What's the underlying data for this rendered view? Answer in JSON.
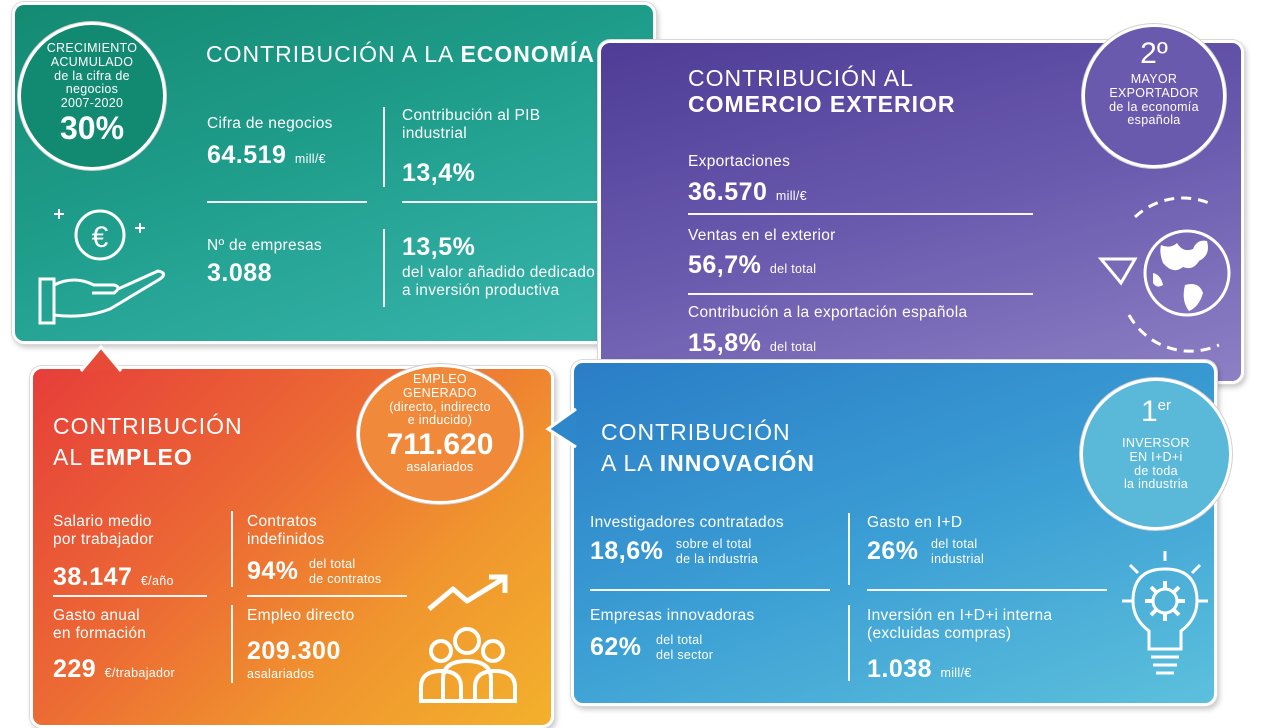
{
  "economia": {
    "title_prefix": "CONTRIBUCIÓN A LA ",
    "title_bold": "ECONOMÍA",
    "badge": {
      "line1": "CRECIMIENTO",
      "line2": "ACUMULADO",
      "line3": "de la cifra de",
      "line4": "negocios",
      "line5": "2007-2020",
      "value": "30%"
    },
    "cifra": {
      "label": "Cifra de negocios",
      "value": "64.519",
      "unit": "mill/€"
    },
    "pib": {
      "label1": "Contribución al PIB",
      "label2": "industrial",
      "value": "13,4%"
    },
    "empresas": {
      "label": "Nº de empresas",
      "value": "3.088"
    },
    "valor": {
      "value": "13,5%",
      "label1": "del valor añadido dedicado",
      "label2": "a inversión productiva"
    },
    "colors": {
      "from": "#1a8f7a",
      "to": "#3cb8b0"
    }
  },
  "comercio": {
    "title_line1": "CONTRIBUCIÓN AL",
    "title_line2": "COMERCIO EXTERIOR",
    "badge": {
      "rank": "2º",
      "line1": "MAYOR",
      "line2": "EXPORTADOR",
      "line3": "de la economía",
      "line4": "española"
    },
    "exportaciones": {
      "label": "Exportaciones",
      "value": "36.570",
      "unit": "mill/€"
    },
    "ventas": {
      "label": "Ventas en el exterior",
      "value": "56,7%",
      "unit": "del total"
    },
    "contrib": {
      "label": "Contribución a la exportación española",
      "value": "15,8%",
      "unit": "del total"
    },
    "colors": {
      "from": "#5a4aa0",
      "to": "#8a7cc0"
    }
  },
  "empleo": {
    "title_line1": "CONTRIBUCIÓN",
    "title_prefix": "AL ",
    "title_bold": "EMPLEO",
    "badge": {
      "line1": "EMPLEO",
      "line2": "GENERADO",
      "line3": "(directo, indirecto",
      "line4": "e inducido)",
      "value": "711.620",
      "unit": "asalariados"
    },
    "salario": {
      "label1": "Salario medio",
      "label2": "por trabajador",
      "value": "38.147",
      "unit": "€/año"
    },
    "contratos": {
      "label1": "Contratos",
      "label2": "indefinidos",
      "value": "94%",
      "unit1": "del total",
      "unit2": "de contratos"
    },
    "gasto": {
      "label1": "Gasto anual",
      "label2": "en formación",
      "value": "229",
      "unit": "€/trabajador"
    },
    "directo": {
      "label": "Empleo directo",
      "value": "209.300",
      "unit": "asalariados"
    },
    "colors": {
      "from": "#e84a3c",
      "to": "#f2a52a"
    }
  },
  "innovacion": {
    "title_line1": "CONTRIBUCIÓN",
    "title_prefix": "A LA ",
    "title_bold": "INNOVACIÓN",
    "badge": {
      "rank": "1",
      "rank_sup": "er",
      "line1": "INVERSOR",
      "line2": "EN I+D+i",
      "line3": "de toda",
      "line4": "la industria"
    },
    "investigadores": {
      "label": "Investigadores contratados",
      "value": "18,6%",
      "unit1": "sobre el total",
      "unit2": "de la industria"
    },
    "gasto": {
      "label": "Gasto en I+D",
      "value": "26%",
      "unit1": "del total",
      "unit2": "industrial"
    },
    "empresas": {
      "label": "Empresas innovadoras",
      "value": "62%",
      "unit1": "del total",
      "unit2": "del sector"
    },
    "inversion": {
      "label1": "Inversión en I+D+i interna",
      "label2": "(excluidas compras)",
      "value": "1.038",
      "unit": "mill/€"
    },
    "colors": {
      "from": "#2c7fc8",
      "to": "#5fc0dc"
    }
  },
  "icons": [
    "euro-hand-icon",
    "globe-cycle-icon",
    "growth-people-icon",
    "lightbulb-gear-icon"
  ]
}
